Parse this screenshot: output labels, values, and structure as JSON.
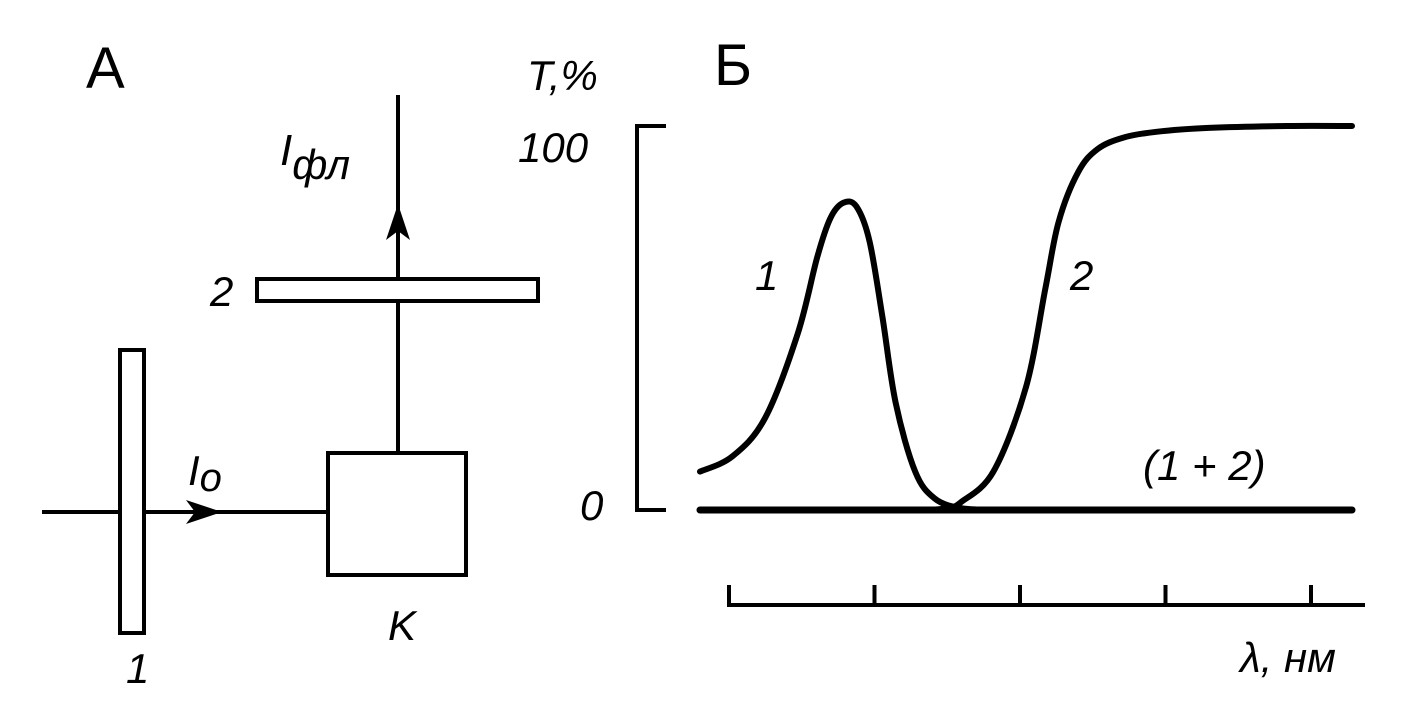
{
  "panel_a": {
    "label": "А",
    "filter_1_label": "1",
    "filter_2_label": "2",
    "cuvette_label": "K",
    "excitation": {
      "symbol": "I",
      "subscript": "o"
    },
    "fluorescence": {
      "symbol": "I",
      "subscript": "фл"
    }
  },
  "panel_b": {
    "label": "Б",
    "chart_data": {
      "type": "line",
      "ylabel": "T,%",
      "xlabel": "λ, нм",
      "ylim": [
        0,
        100
      ],
      "y_ticks": [
        "0",
        "100"
      ],
      "x_tick_count": 5,
      "series": [
        {
          "name": "1",
          "x": [
            0.0,
            0.05,
            0.1,
            0.15,
            0.18,
            0.2,
            0.22,
            0.24,
            0.26,
            0.28,
            0.3,
            0.33,
            0.36,
            0.4,
            0.45
          ],
          "y": [
            10,
            14,
            24,
            46,
            66,
            76,
            80,
            79,
            70,
            50,
            28,
            10,
            3,
            0.5,
            0
          ]
        },
        {
          "name": "2",
          "x": [
            0.35,
            0.38,
            0.4,
            0.45,
            0.5,
            0.53,
            0.55,
            0.58,
            0.61,
            0.65,
            0.7,
            0.78,
            0.9,
            1.0
          ],
          "y": [
            0,
            0.5,
            2,
            10,
            32,
            58,
            75,
            88,
            94,
            97,
            98.5,
            99.5,
            100,
            100
          ]
        },
        {
          "name": "(1 + 2)",
          "x": [
            0.0,
            1.0
          ],
          "y": [
            0,
            0
          ]
        }
      ]
    }
  }
}
